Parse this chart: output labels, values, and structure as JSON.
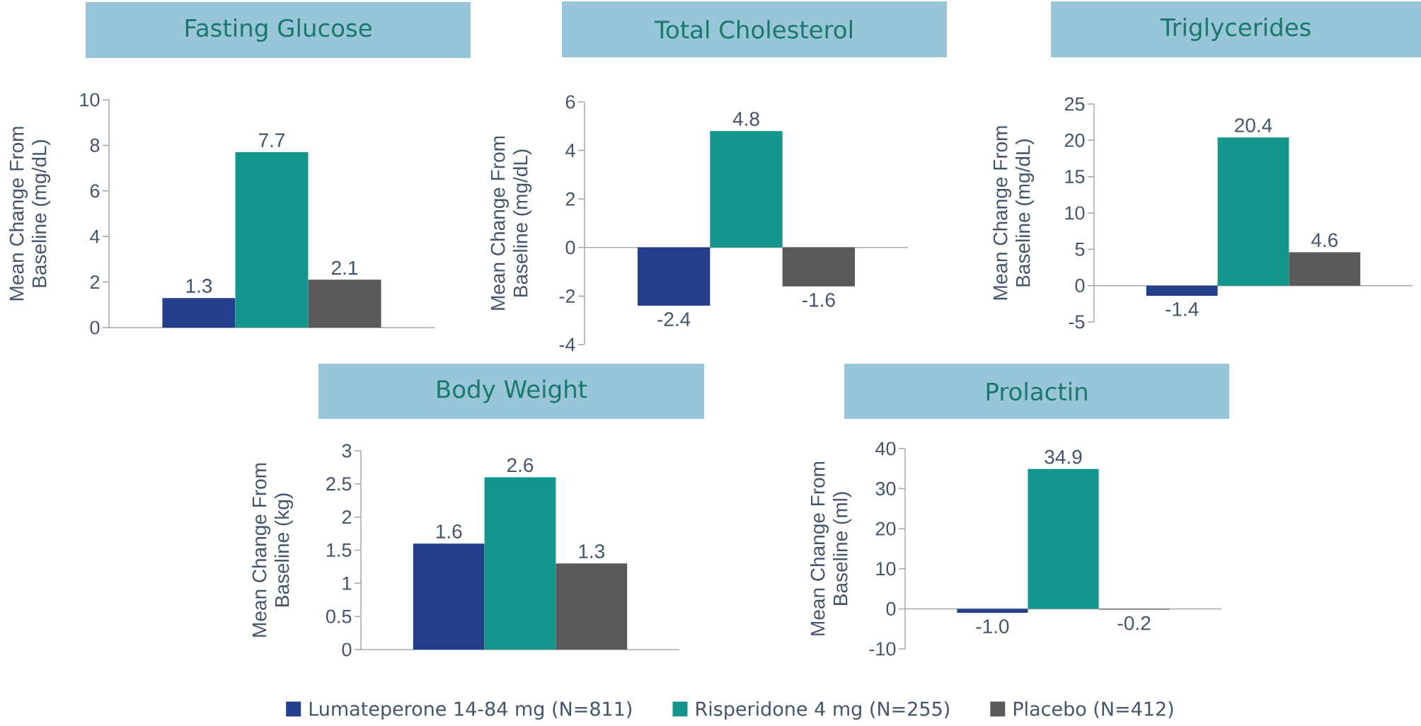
{
  "chart_data": [
    {
      "type": "bar",
      "title": "Fasting Glucose",
      "ylabel": "Mean Change From Baseline (mg/dL)",
      "categories": [
        null
      ],
      "series": [
        {
          "color": "#233f8c",
          "values": [
            1.3
          ]
        },
        {
          "color": "#14958e",
          "values": [
            7.7
          ]
        },
        {
          "color": "#595959",
          "values": [
            2.1
          ]
        }
      ],
      "ylim": [
        0,
        10
      ],
      "yticks": [
        0,
        2,
        4,
        6,
        8,
        10
      ],
      "data_labels": true
    },
    {
      "type": "bar",
      "title": "Total Cholesterol",
      "ylabel": "Mean Change From Baseline (mg/dL)",
      "categories": [
        null
      ],
      "series": [
        {
          "color": "#233f8c",
          "values": [
            -2.4
          ]
        },
        {
          "color": "#14958e",
          "values": [
            4.8
          ]
        },
        {
          "color": "#595959",
          "values": [
            -1.6
          ]
        }
      ],
      "ylim": [
        -4,
        6
      ],
      "yticks": [
        -4,
        -2,
        0,
        2,
        4,
        6
      ],
      "data_labels": true
    },
    {
      "type": "bar",
      "title": "Triglycerides",
      "ylabel": "Mean Change From Baseline (mg/dL)",
      "categories": [
        null
      ],
      "series": [
        {
          "color": "#233f8c",
          "values": [
            -1.4
          ]
        },
        {
          "color": "#14958e",
          "values": [
            20.4
          ]
        },
        {
          "color": "#595959",
          "values": [
            4.6
          ]
        }
      ],
      "ylim": [
        -5,
        25
      ],
      "yticks": [
        -5,
        0,
        5,
        10,
        15,
        20,
        25
      ],
      "data_labels": true
    },
    {
      "type": "bar",
      "title": "Body Weight",
      "ylabel": "Mean Change From Baseline (kg)",
      "categories": [
        null
      ],
      "series": [
        {
          "name": "Lumateperone 14-84 mg (N=811)",
          "color": "#233f8c",
          "values": [
            1.6
          ]
        },
        {
          "name": "Risperidone 4 mg (N=255)",
          "color": "#14958e",
          "values": [
            2.6
          ]
        },
        {
          "name": "Placebo (N=412)",
          "color": "#595959",
          "values": [
            1.3
          ]
        }
      ],
      "ylim": [
        0,
        3
      ],
      "yticks": [
        0,
        0.5,
        1,
        1.5,
        2,
        2.5,
        3
      ],
      "data_labels": true,
      "legend": "bottom"
    },
    {
      "type": "bar",
      "title": "Prolactin",
      "ylabel": "Mean Change From Baseline (ml)",
      "categories": [
        null
      ],
      "series": [
        {
          "color": "#233f8c",
          "values": [
            -1.0
          ],
          "value_labels": [
            "-1.0"
          ]
        },
        {
          "color": "#14958e",
          "values": [
            34.9
          ],
          "value_labels": [
            "34.9"
          ]
        },
        {
          "color": "#595959",
          "values": [
            -0.2
          ],
          "value_labels": [
            "-0.2"
          ]
        }
      ],
      "ylim": [
        -10,
        40
      ],
      "yticks": [
        -10,
        0,
        10,
        20,
        30,
        40
      ]
    }
  ]
}
